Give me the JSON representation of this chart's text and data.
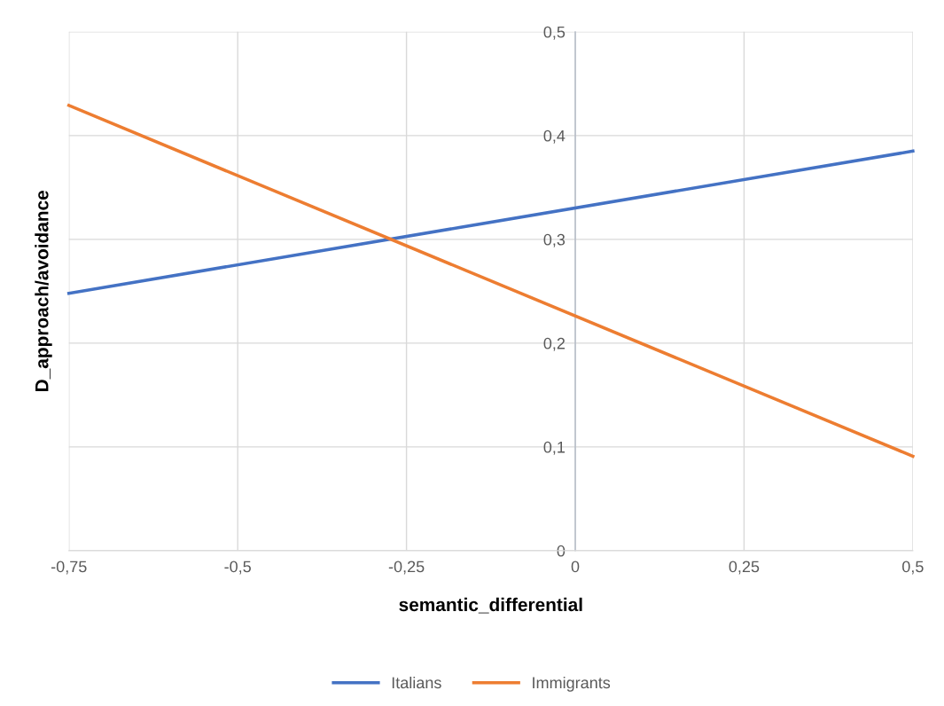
{
  "chart_data": {
    "type": "line",
    "xlabel": "semantic_differential",
    "ylabel": "D_approach/avoidance",
    "x": [
      -0.75,
      0.5
    ],
    "series": [
      {
        "name": "Italians",
        "color": "#4472c4",
        "values": [
          0.248,
          0.385
        ]
      },
      {
        "name": "Immigrants",
        "color": "#ed7d31",
        "values": [
          0.429,
          0.091
        ]
      }
    ],
    "xlim": [
      -0.75,
      0.5
    ],
    "ylim": [
      0,
      0.5
    ],
    "xticks": [
      {
        "value": -0.75,
        "label": "-0,75"
      },
      {
        "value": -0.5,
        "label": "-0,5"
      },
      {
        "value": -0.25,
        "label": "-0,25"
      },
      0,
      {
        "value": 0.25,
        "label": "0,25"
      },
      {
        "value": 0.5,
        "label": "0,5"
      }
    ],
    "yticks": [
      0,
      {
        "value": 0.1,
        "label": "0,1"
      },
      {
        "value": 0.2,
        "label": "0,2"
      },
      {
        "value": 0.3,
        "label": "0,3"
      },
      {
        "value": 0.4,
        "label": "0,4"
      },
      {
        "value": 0.5,
        "label": "0,5"
      }
    ],
    "grid": true,
    "legend": "bottom",
    "marker": "none",
    "line_style": "solid"
  }
}
